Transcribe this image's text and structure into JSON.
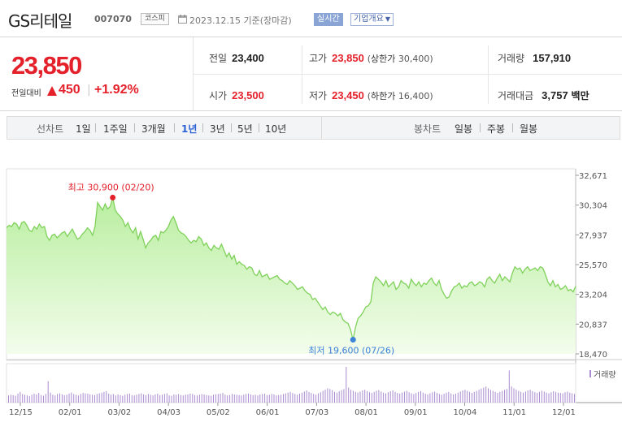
{
  "header": {
    "stock_name": "GS리테일",
    "stock_code": "007070",
    "market": "코스피",
    "date_text": "2023.12.15  기준(장마감)",
    "realtime_label": "실시간",
    "overview_label": "기업개요"
  },
  "price": {
    "current": "23,850",
    "change_label": "전일대비",
    "change_value": "450",
    "change_pct": "+1.92%",
    "direction": "up"
  },
  "stats": {
    "prev_close": {
      "label": "전일",
      "value": "23,400"
    },
    "high": {
      "label": "고가",
      "value": "23,850",
      "limit_label": "상한가",
      "limit_value": "30,400"
    },
    "volume": {
      "label": "거래량",
      "value": "157,910"
    },
    "open": {
      "label": "시가",
      "value": "23,500"
    },
    "low": {
      "label": "저가",
      "value": "23,450",
      "limit_label": "하한가",
      "limit_value": "16,400"
    },
    "amount": {
      "label": "거래대금",
      "value": "3,757",
      "unit": "백만"
    }
  },
  "period_bar": {
    "title": "선차트",
    "periods": [
      "1일",
      "1주일",
      "3개월",
      "1년",
      "3년",
      "5년",
      "10년"
    ],
    "active": "1년",
    "candle_title": "봉차트",
    "candles": [
      "일봉",
      "주봉",
      "월봉"
    ]
  },
  "colors": {
    "red": "#e4202a",
    "line": "#7fd15a",
    "fill_top": "#b9eea0",
    "fill_bottom": "#f3fdec",
    "volume": "#a98ad0",
    "low_marker": "#3d82d9",
    "active_period": "#2c62d6"
  },
  "chart_data": {
    "type": "area",
    "y_ticks": [
      "32,671",
      "30,304",
      "27,937",
      "25,570",
      "23,204",
      "20,837",
      "18,470"
    ],
    "ylim": [
      18470,
      32671
    ],
    "x_ticks": [
      "12/15",
      "02/01",
      "03/02",
      "04/03",
      "05/02",
      "06/01",
      "07/03",
      "08/01",
      "09/01",
      "10/04",
      "11/01",
      "12/01"
    ],
    "high_annotation": "최고 30,900 (02/20)",
    "low_annotation": "최저 19,600 (07/26)",
    "high_value": 30900,
    "low_value": 19600,
    "volume_legend": "거래량",
    "series": [
      {
        "values": [
          28500,
          28700,
          28600,
          28900,
          28800,
          28400,
          28900,
          29000,
          28700,
          28300,
          28200,
          28600,
          28400,
          28800,
          28500,
          28600,
          27800,
          27500,
          27900,
          28000,
          27700,
          27900,
          28100,
          28200,
          27800,
          28100,
          28400,
          28000,
          27600,
          27700,
          28000,
          28200,
          28500,
          28300,
          27900,
          28600,
          30500,
          30200,
          29900,
          30400,
          30000,
          30200,
          30900,
          29900,
          29600,
          29400,
          29100,
          28600,
          28900,
          28400,
          28100,
          28500,
          27600,
          28200,
          27600,
          26900,
          27300,
          27500,
          27800,
          27900,
          27500,
          28200,
          28100,
          28300,
          28600,
          29100,
          29400,
          28900,
          28300,
          28100,
          28000,
          27800,
          27500,
          27300,
          27500,
          27400,
          27800,
          27600,
          27100,
          27300,
          26900,
          26700,
          27100,
          26900,
          26800,
          27200,
          26700,
          26200,
          26500,
          26000,
          26300,
          25600,
          25800,
          25600,
          25500,
          25200,
          25400,
          25300,
          24800,
          24700,
          25100,
          24600,
          24700,
          24800,
          24400,
          24500,
          24600,
          24700,
          24400,
          24300,
          24100,
          24000,
          24300,
          24100,
          23900,
          23600,
          23700,
          23800,
          23500,
          23300,
          23200,
          22800,
          22900,
          22600,
          22300,
          22000,
          22200,
          21800,
          21600,
          21800,
          21700,
          21500,
          21700,
          21200,
          21000,
          20900,
          20400,
          19600,
          20600,
          21300,
          21500,
          21800,
          22200,
          22300,
          22600,
          24100,
          24600,
          24400,
          24200,
          23900,
          24300,
          23800,
          24000,
          24200,
          23600,
          23800,
          24300,
          24100,
          24000,
          23700,
          24400,
          24100,
          23900,
          24200,
          23800,
          24100,
          24000,
          24300,
          24500,
          24100,
          23900,
          24300,
          23600,
          23200,
          22900,
          23000,
          23500,
          23800,
          23900,
          24100,
          23700,
          23900,
          23800,
          24100,
          24200,
          23900,
          24000,
          24200,
          24100,
          23800,
          24400,
          24600,
          24300,
          24100,
          24500,
          24800,
          24300,
          24600,
          24400,
          24200,
          24900,
          25400,
          25200,
          25300,
          24900,
          25200,
          25400,
          25100,
          25200,
          25300,
          25100,
          25400,
          25300,
          24800,
          24200,
          23900,
          24300,
          23800,
          24000,
          23600,
          23700,
          23900,
          23500,
          23600,
          23400,
          23850
        ]
      }
    ],
    "volume": [
      20,
      22,
      21,
      19,
      25,
      30,
      24,
      22,
      20,
      18,
      22,
      25,
      23,
      27,
      21,
      19,
      24,
      60,
      28,
      22,
      20,
      24,
      26,
      23,
      21,
      22,
      25,
      28,
      24,
      22,
      20,
      24,
      27,
      26,
      25,
      23,
      22,
      21,
      24,
      26,
      28,
      30,
      32,
      25,
      22,
      24,
      20,
      23,
      21,
      19,
      22,
      24,
      25,
      21,
      20,
      22,
      24,
      26,
      23,
      21,
      24,
      22,
      20,
      23,
      25,
      21,
      22,
      24,
      26,
      20,
      19,
      23,
      22,
      24,
      21,
      20,
      22,
      23,
      25,
      24,
      21,
      20,
      22,
      24,
      23,
      21,
      20,
      19,
      22,
      23,
      24,
      25,
      27,
      22,
      20,
      21,
      24,
      23,
      22,
      21,
      20,
      22,
      24,
      25,
      23,
      21,
      22,
      20,
      23,
      24,
      25,
      21,
      22,
      24,
      23,
      20,
      21,
      22,
      24,
      26,
      28,
      30,
      27,
      24,
      22,
      25,
      28,
      31,
      34,
      30,
      27,
      24,
      22,
      26,
      29,
      33,
      36,
      40,
      38,
      35,
      30,
      28,
      32,
      35,
      38,
      100,
      42,
      36,
      33,
      30,
      28,
      31,
      34,
      36,
      32,
      29,
      27,
      30,
      33,
      35,
      31,
      28,
      26,
      29,
      32,
      34,
      30,
      27,
      25,
      28,
      31,
      33,
      29,
      26,
      24,
      27,
      30,
      32,
      28,
      25,
      23,
      26,
      29,
      31,
      27,
      24,
      22,
      25,
      28,
      30,
      26,
      23,
      25,
      28,
      31,
      34,
      36,
      33,
      30,
      27,
      30,
      33,
      36,
      39,
      42,
      45,
      40,
      36,
      33,
      30,
      27,
      30,
      33,
      36,
      38,
      90,
      45,
      40,
      36,
      33,
      30,
      28,
      31,
      34,
      36,
      32,
      29,
      27,
      30,
      33,
      31,
      28,
      26,
      29,
      32,
      30,
      28,
      27,
      26,
      29,
      31,
      28,
      26,
      24
    ]
  }
}
